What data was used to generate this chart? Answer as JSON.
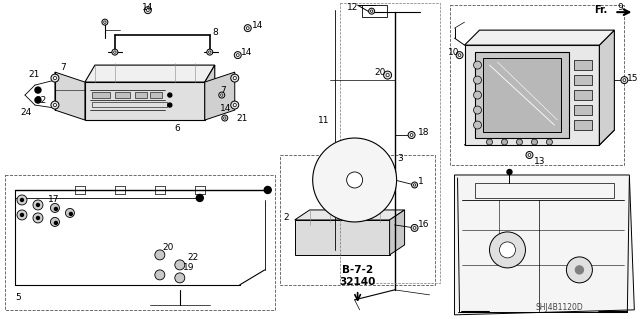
{
  "bg_color": "#ffffff",
  "fig_width": 6.4,
  "fig_height": 3.19,
  "dpi": 100,
  "ref_code_line1": "B-7-2",
  "ref_code_line2": "32140",
  "watermark": "SHJ4B1120D"
}
